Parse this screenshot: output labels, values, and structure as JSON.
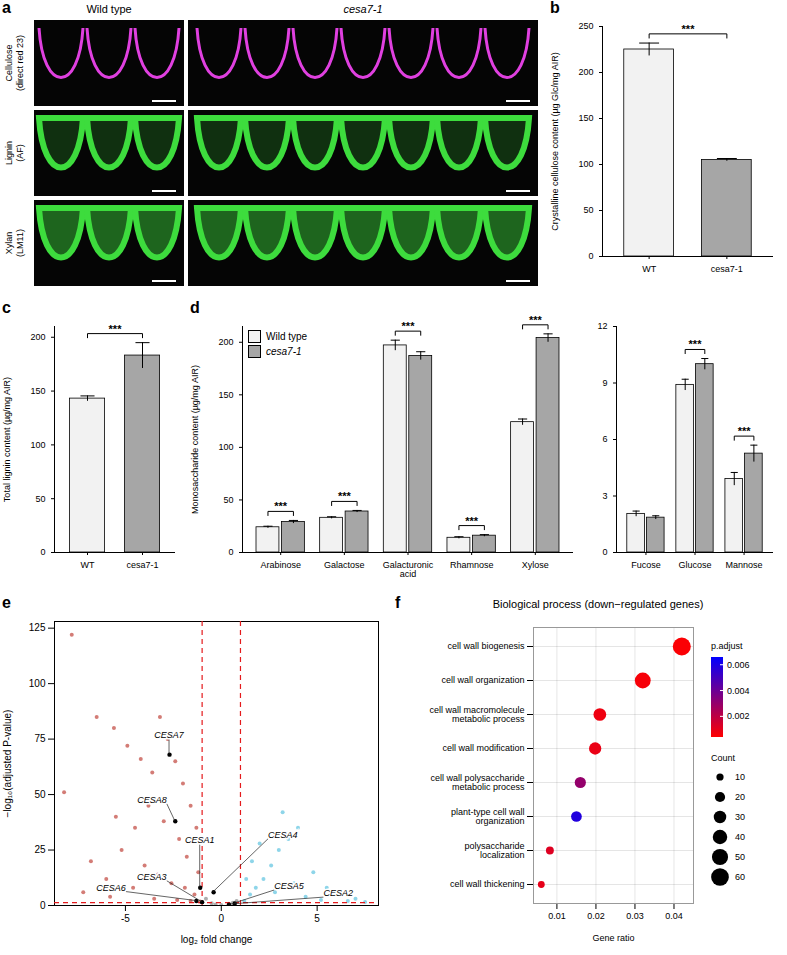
{
  "images": {
    "panel": "a",
    "columns": [
      "Wild type",
      "cesa7-1"
    ],
    "rows": [
      {
        "label": "Cellulose (direct red 23)",
        "color": "#e040e0"
      },
      {
        "label": "Lignin (AF)",
        "color": "#3ddc3d"
      },
      {
        "label": "Xylan (LM11)",
        "color": "#3ddc3d"
      }
    ]
  },
  "chart_data": [
    {
      "panel": "b",
      "type": "bar",
      "categories": [
        "WT",
        "cesa7-1"
      ],
      "values": [
        225,
        105
      ],
      "errors": [
        7,
        1.5
      ],
      "colors": [
        "#f2f2f2",
        "#a6a6a6"
      ],
      "ylabel": "Crystalline cellulose content (µg Glc/mg AIR)",
      "ylim": [
        0,
        250
      ],
      "yticks": [
        0,
        50,
        100,
        150,
        200,
        250
      ],
      "annotation": "***"
    },
    {
      "panel": "c",
      "type": "bar",
      "categories": [
        "WT",
        "cesa7-1"
      ],
      "values": [
        143,
        183
      ],
      "errors": [
        2.5,
        12
      ],
      "colors": [
        "#f2f2f2",
        "#a6a6a6"
      ],
      "ylabel": "Total lignin content (µg/mg AIR)",
      "ylim": [
        0,
        210
      ],
      "yticks": [
        0,
        50,
        100,
        150,
        200
      ],
      "annotation": "***"
    },
    {
      "panel": "d",
      "type": "bar",
      "categories": [
        "Arabinose",
        "Galactose",
        "Galacturonic acid",
        "Rhamnose",
        "Xylose"
      ],
      "series": [
        {
          "name": "Wild type",
          "color": "#f2f2f2",
          "values": [
            24,
            33,
            197,
            14,
            124
          ],
          "errors": [
            1,
            1,
            5,
            1,
            3
          ]
        },
        {
          "name": "cesa7-1",
          "color": "#a6a6a6",
          "values": [
            29,
            39,
            187,
            16,
            204
          ],
          "errors": [
            1.5,
            1,
            4,
            1,
            4
          ]
        }
      ],
      "ylabel": "Monosaccharide content (µg/mg AIR)",
      "ylim": [
        0,
        215
      ],
      "yticks": [
        0,
        50,
        100,
        150,
        200
      ],
      "annotations": [
        "***",
        "***",
        "***",
        "***",
        "***"
      ],
      "legend": "top-left"
    },
    {
      "panel": "d",
      "type": "bar",
      "categories": [
        "Fucose",
        "Glucose",
        "Mannose"
      ],
      "series": [
        {
          "color": "#f2f2f2",
          "values": [
            2.05,
            8.9,
            3.9
          ],
          "errors": [
            0.15,
            0.3,
            0.35
          ]
        },
        {
          "color": "#a6a6a6",
          "values": [
            1.85,
            10.0,
            5.25
          ],
          "errors": [
            0.1,
            0.3,
            0.45
          ]
        }
      ],
      "ylim": [
        0,
        12
      ],
      "yticks": [
        0,
        3,
        6,
        9,
        12
      ],
      "annotations": [
        null,
        "***",
        "***"
      ]
    },
    {
      "panel": "e",
      "type": "scatter",
      "xlabel": "log₂ fold change",
      "ylabel": "−log₁₀(adjusted P-value)",
      "xlim": [
        -8.7,
        8.2
      ],
      "xticks": [
        -5,
        0,
        5
      ],
      "ylim": [
        0,
        128
      ],
      "yticks": [
        0,
        25,
        50,
        75,
        100,
        125
      ],
      "series": [
        {
          "color": "#c0443c",
          "x": [
            -7.8,
            -8.2,
            -6.5,
            -5.6,
            -4.9,
            -4.2,
            -3.6,
            -3.2,
            -2.8,
            -2.4,
            -2.0,
            -1.6,
            -1.3,
            -5.5,
            -4.5,
            -3.8,
            -3.0,
            -2.2,
            -1.8,
            -1.2,
            -6.8,
            -6.0,
            -5.2,
            -4.0,
            -3.3,
            -2.6,
            -1.9,
            -1.4,
            -7.2,
            -5.8,
            -4.6,
            -3.5,
            -2.3,
            -1.6,
            -1.1
          ],
          "y": [
            122,
            51,
            85,
            80,
            72,
            66,
            60,
            85,
            75,
            65,
            55,
            45,
            35,
            40,
            35,
            45,
            38,
            30,
            22,
            15,
            20,
            12,
            25,
            18,
            14,
            10,
            8,
            5,
            6,
            4,
            8,
            3,
            2.5,
            2,
            1.8
          ]
        },
        {
          "color": "#5ec3e0",
          "x": [
            1.2,
            1.5,
            1.8,
            2.2,
            2.6,
            3.0,
            3.5,
            4.0,
            2.0,
            1.6,
            1.3,
            4.8,
            5.5,
            6.2,
            7.0,
            3.8,
            2.8,
            4.4,
            5.2,
            6.6,
            7.5,
            3.2
          ],
          "y": [
            2,
            5,
            8,
            12,
            18,
            25,
            30,
            35,
            28,
            20,
            12,
            15,
            8,
            5,
            3,
            10,
            6,
            4,
            2.5,
            2,
            1.6,
            42
          ]
        },
        {
          "color": "#8c8c8c",
          "x": [
            -0.8,
            -0.5,
            0,
            0.4,
            0.8,
            -0.3,
            0.6
          ],
          "y": [
            3,
            1,
            0.2,
            0.8,
            2,
            0.5,
            1.2
          ]
        }
      ],
      "reference_lines": {
        "x": [
          -1,
          1
        ],
        "y": [
          1.3
        ],
        "color": "#e41a1c"
      },
      "genes": [
        {
          "label": "CESA7",
          "x": -2.7,
          "y": 68
        },
        {
          "label": "CESA8",
          "x": -2.4,
          "y": 38
        },
        {
          "label": "CESA1",
          "x": -1.1,
          "y": 8
        },
        {
          "label": "CESA4",
          "x": -0.4,
          "y": 6
        },
        {
          "label": "CESA6",
          "x": -1.3,
          "y": 2
        },
        {
          "label": "CESA3",
          "x": -1.0,
          "y": 1.5
        },
        {
          "label": "CESA5",
          "x": 0.7,
          "y": 0.9
        },
        {
          "label": "CESA2",
          "x": 0.4,
          "y": 0.4
        }
      ]
    },
    {
      "panel": "f",
      "type": "bubble",
      "title": "Biological process (down−regulated genes)",
      "categories": [
        "cell wall biogenesis",
        "cell wall organization",
        "cell wall macromolecule metabolic process",
        "cell wall modification",
        "cell wall polysaccharide metabolic process",
        "plant-type cell wall organization",
        "polysaccharide localization",
        "cell wall thickening"
      ],
      "values": [
        0.042,
        0.032,
        0.021,
        0.0198,
        0.016,
        0.015,
        0.0082,
        0.006
      ],
      "counts": [
        62,
        48,
        31,
        29,
        24,
        22,
        12,
        9
      ],
      "p_adjust": [
        0.0005,
        0.0006,
        0.0008,
        0.0009,
        0.003,
        0.0058,
        0.0012,
        0.001
      ],
      "xlabel": "Gene ratio",
      "xlim": [
        0.004,
        0.045
      ],
      "xticks": [
        0.01,
        0.02,
        0.03,
        0.04
      ],
      "grid": true,
      "colorbar": {
        "label": "p.adjust",
        "lim": [
          0.0004,
          0.0066
        ],
        "ticks": [
          0.002,
          0.004,
          0.006
        ],
        "colors": [
          "#ff0000",
          "#0000ff"
        ]
      },
      "size_legend": {
        "label": "Count",
        "ticks": [
          10,
          20,
          30,
          40,
          50,
          60
        ]
      }
    }
  ]
}
